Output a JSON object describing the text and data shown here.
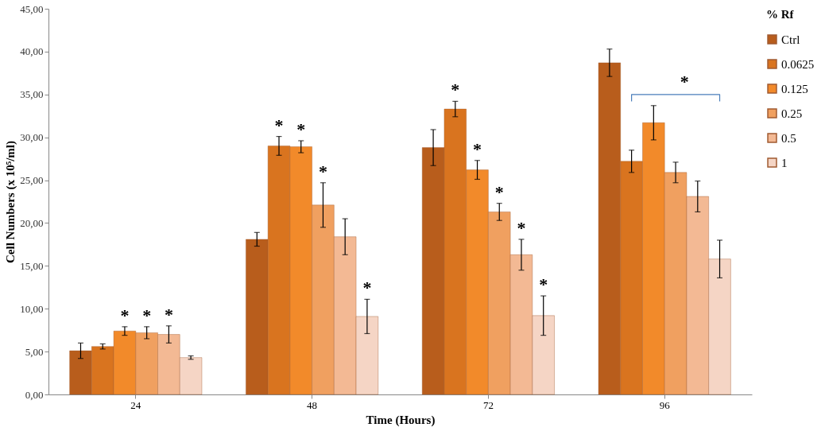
{
  "chart_data": {
    "type": "bar",
    "xlabel": "Time (Hours)",
    "ylabel": "Cell Numbers (x 10⁵/ml)",
    "legend_title": "% Rf",
    "categories": [
      "24",
      "48",
      "72",
      "96"
    ],
    "series": [
      {
        "name": "Ctrl",
        "color": "#b85d1c",
        "values": [
          5.1,
          18.1,
          28.8,
          38.7
        ],
        "errors": [
          0.9,
          0.8,
          2.1,
          1.6
        ],
        "value_labels": [
          null,
          null,
          null,
          null
        ]
      },
      {
        "name": "0.0625",
        "color": "#d9741f",
        "values": [
          5.6,
          29.0,
          33.3,
          27.2
        ],
        "errors": [
          0.3,
          1.1,
          0.9,
          1.3
        ],
        "value_labels": [
          null,
          "*",
          "*",
          null
        ]
      },
      {
        "name": "0.125",
        "color": "#f28a2a",
        "values": [
          7.4,
          28.9,
          26.2,
          31.7
        ],
        "errors": [
          0.5,
          0.7,
          1.1,
          2.0
        ],
        "value_labels": [
          "*",
          "*",
          "*",
          null
        ]
      },
      {
        "name": "0.25",
        "color": "#f0a060",
        "values": [
          7.2,
          22.1,
          21.3,
          25.9
        ],
        "errors": [
          0.7,
          2.6,
          1.0,
          1.2
        ],
        "value_labels": [
          "*",
          "*",
          "*",
          null
        ]
      },
      {
        "name": "0.5",
        "color": "#f3b994",
        "values": [
          7.0,
          18.4,
          16.3,
          23.1
        ],
        "errors": [
          1.0,
          2.1,
          1.8,
          1.8
        ],
        "value_labels": [
          "*",
          null,
          "*",
          null
        ]
      },
      {
        "name": "1",
        "color": "#f5d5c5",
        "values": [
          4.3,
          9.1,
          9.2,
          15.8
        ],
        "errors": [
          0.2,
          2.0,
          2.3,
          2.2
        ],
        "value_labels": [
          null,
          "*",
          "*",
          null
        ]
      }
    ],
    "annotations": [
      "*"
    ],
    "ylim": [
      0,
      45
    ],
    "yticks": [
      {
        "value": 0,
        "label": "0,00"
      },
      {
        "value": 5,
        "label": "5,00"
      },
      {
        "value": 10,
        "label": "10,00"
      },
      {
        "value": 15,
        "label": "15,00"
      },
      {
        "value": 20,
        "label": "20,00"
      },
      {
        "value": 25,
        "label": "25,00"
      },
      {
        "value": 30,
        "label": "30,00"
      },
      {
        "value": 35,
        "label": "35,00"
      },
      {
        "value": 40,
        "label": "40,00"
      },
      {
        "value": 45,
        "label": "45,00"
      }
    ],
    "grid": false,
    "legend": "right"
  }
}
